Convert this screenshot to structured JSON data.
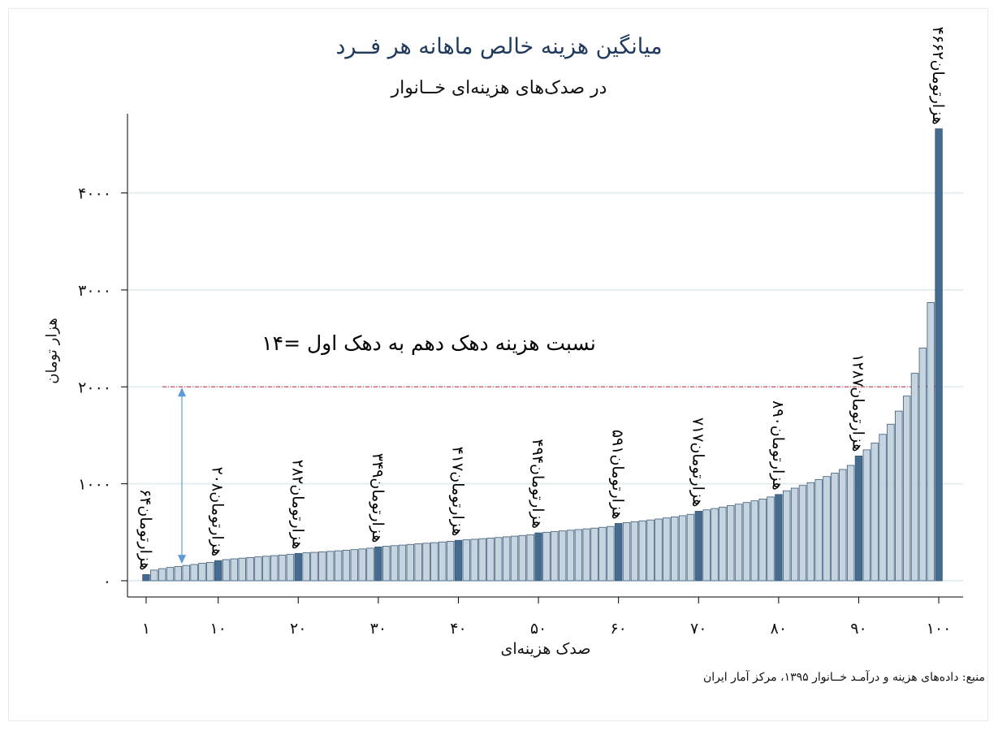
{
  "titles": {
    "main": "میانگین هزینه خالص ماهانه هر فــرد",
    "sub": "در صدک‌های هزینه‌ای خــانوار"
  },
  "source": "منبع: داده‌های هزینه و درآمـد خــانوار ۱۳۹۵، مرکز آمار ایران",
  "annotation": "نسبت هزینه دهک دهم به دهک اول =۱۴",
  "colors": {
    "bar": "#c5d4df",
    "highlight": "#456b8f",
    "grid": "#e4edf0",
    "reference": "#d7263d",
    "arrow": "#5b9bd5",
    "title": "#1f3a5c"
  },
  "chart_data": {
    "type": "bar",
    "xlabel": "صدک هزینه‌ای",
    "ylabel": "هزار  تومان",
    "ylim": [
      0,
      4800
    ],
    "yticks": [
      0,
      1000,
      2000,
      3000,
      4000
    ],
    "ytick_labels": [
      "۰",
      "۱۰۰۰",
      "۲۰۰۰",
      "۳۰۰۰",
      "۴۰۰۰"
    ],
    "xticks": [
      1,
      10,
      20,
      30,
      40,
      50,
      60,
      70,
      80,
      90,
      100
    ],
    "xtick_labels": [
      "۱",
      "۱۰",
      "۲۰",
      "۳۰",
      "۴۰",
      "۵۰",
      "۶۰",
      "۷۰",
      "۸۰",
      "۹۰",
      "۱۰۰"
    ],
    "grid": true,
    "reference_line": 2000,
    "values": [
      64,
      110,
      125,
      137,
      148,
      158,
      168,
      180,
      190,
      208,
      218,
      226,
      233,
      240,
      246,
      253,
      259,
      265,
      272,
      282,
      288,
      293,
      298,
      303,
      309,
      315,
      321,
      328,
      336,
      349,
      356,
      362,
      368,
      375,
      381,
      387,
      393,
      400,
      407,
      417,
      422,
      428,
      434,
      440,
      446,
      453,
      460,
      467,
      475,
      494,
      500,
      507,
      514,
      521,
      528,
      535,
      543,
      551,
      560,
      591,
      600,
      609,
      618,
      627,
      637,
      648,
      659,
      671,
      685,
      717,
      731,
      745,
      760,
      775,
      790,
      807,
      824,
      843,
      864,
      890,
      928,
      955,
      983,
      1012,
      1043,
      1075,
      1110,
      1148,
      1190,
      1287,
      1350,
      1420,
      1510,
      1615,
      1750,
      1905,
      2140,
      2400,
      2870,
      4662
    ],
    "highlights": [
      {
        "percentile": 1,
        "label": "۶۴هزارتومان"
      },
      {
        "percentile": 10,
        "label": "۲۰۸هزارتومان"
      },
      {
        "percentile": 20,
        "label": "۲۸۲هزارتومان"
      },
      {
        "percentile": 30,
        "label": "۳۴۹هزارتومان"
      },
      {
        "percentile": 40,
        "label": "۴۱۷هزارتومان"
      },
      {
        "percentile": 50,
        "label": "۴۹۴هزارتومان"
      },
      {
        "percentile": 60,
        "label": "۵۹۱هزارتومان"
      },
      {
        "percentile": 70,
        "label": "۷۱۷هزارتومان"
      },
      {
        "percentile": 80,
        "label": "۸۹۰هزارتومان"
      },
      {
        "percentile": 90,
        "label": "۱۲۸۷هزارتومان"
      },
      {
        "percentile": 100,
        "label": "۴۶۶۲هزارتومان"
      }
    ]
  }
}
